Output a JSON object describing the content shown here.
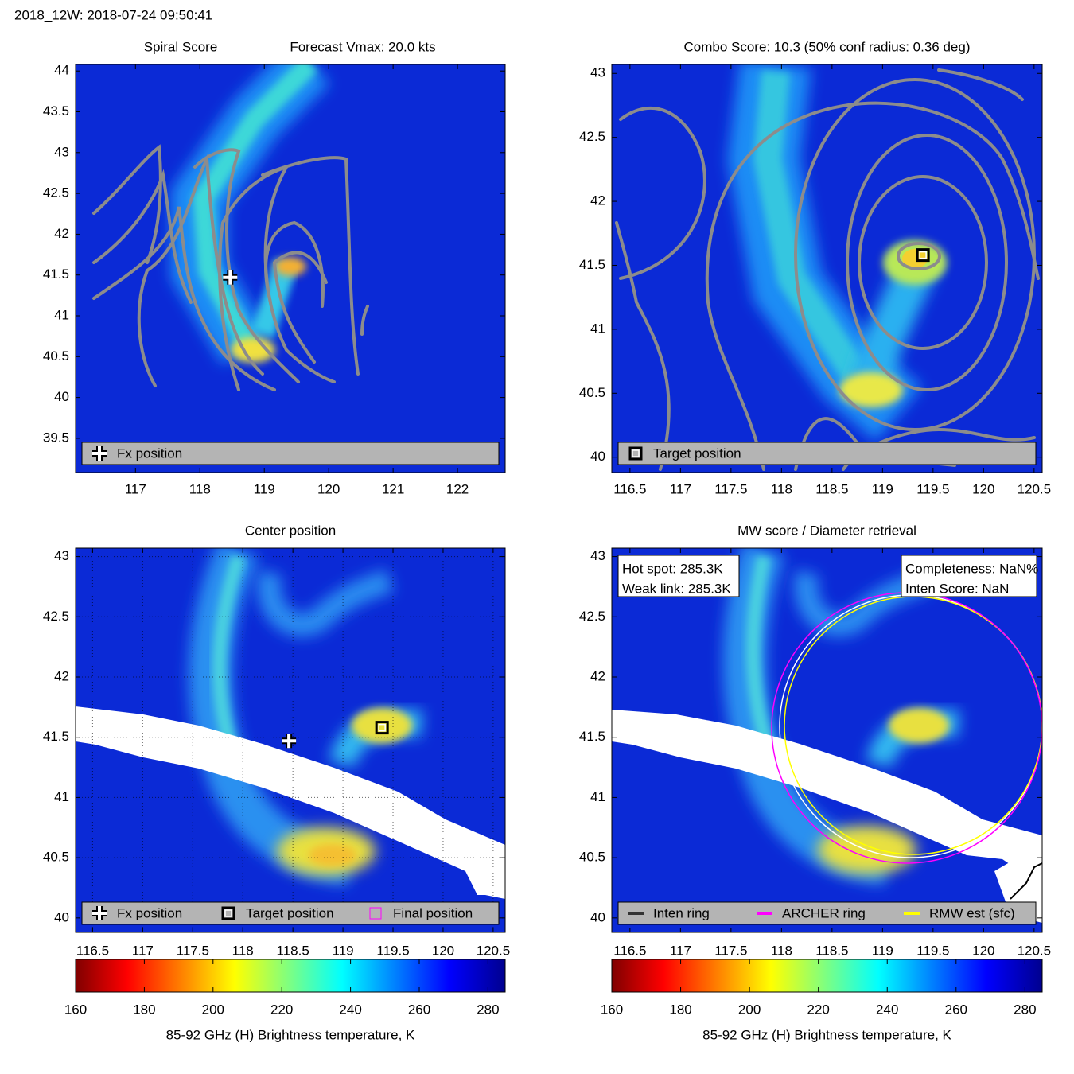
{
  "title": "2018_12W: 2018-07-24 09:50:41",
  "chart_data": [
    {
      "type": "heatmap",
      "title": "Spiral Score",
      "subtitle": "Forecast Vmax: 20.0 kts",
      "xlim": [
        116.07,
        122.74
      ],
      "ylim": [
        39.08,
        44.08
      ],
      "xticks": [
        117,
        118,
        119,
        120,
        121,
        122
      ],
      "yticks": [
        39.5,
        40,
        40.5,
        41,
        41.5,
        42,
        42.5,
        43,
        43.5,
        44
      ],
      "markers": [
        {
          "name": "Fx position",
          "symbol": "plus",
          "x": 118.47,
          "y": 41.47
        }
      ]
    },
    {
      "type": "heatmap",
      "title": "Combo Score: 10.3  (50% conf radius: 0.36 deg)",
      "xlim": [
        116.32,
        120.58
      ],
      "ylim": [
        39.88,
        43.07
      ],
      "xticks": [
        116.5,
        117,
        117.5,
        118,
        118.5,
        119,
        119.5,
        120,
        120.5
      ],
      "yticks": [
        40,
        40.5,
        41,
        41.5,
        42,
        42.5,
        43
      ],
      "markers": [
        {
          "name": "Target position",
          "symbol": "square",
          "x": 119.4,
          "y": 41.58
        }
      ]
    },
    {
      "type": "heatmap",
      "title": "Center position",
      "grid": true,
      "xlim": [
        116.33,
        120.62
      ],
      "ylim": [
        39.88,
        43.07
      ],
      "xticks": [
        116.5,
        117,
        117.5,
        118,
        118.5,
        119,
        119.5,
        120,
        120.5
      ],
      "yticks": [
        40,
        40.5,
        41,
        41.5,
        42,
        42.5,
        43
      ],
      "markers": [
        {
          "name": "Fx position",
          "symbol": "plus",
          "x": 118.46,
          "y": 41.47
        },
        {
          "name": "Target position",
          "symbol": "square",
          "x": 119.39,
          "y": 41.58
        },
        {
          "name": "Final position",
          "symbol": "small-square",
          "color": "#ff00ff"
        }
      ],
      "colorbar": {
        "label": "85-92 GHz (H) Brightness temperature, K",
        "lim": [
          160,
          285
        ],
        "ticks": [
          160,
          180,
          200,
          220,
          240,
          260,
          280
        ]
      }
    },
    {
      "type": "heatmap",
      "title": "MW score / Diameter retrieval",
      "xlim": [
        116.32,
        120.58
      ],
      "ylim": [
        39.88,
        43.07
      ],
      "xticks": [
        116.5,
        117,
        117.5,
        118,
        118.5,
        119,
        119.5,
        120,
        120.5
      ],
      "yticks": [
        40,
        40.5,
        41,
        41.5,
        42,
        42.5,
        43
      ],
      "series": [
        {
          "name": "Inten ring",
          "color": "#333333"
        },
        {
          "name": "ARCHER ring",
          "color": "#ff00ff"
        },
        {
          "name": "RMW est (sfc)",
          "color": "#ffff00"
        }
      ],
      "annotations": [
        {
          "lines": [
            "Hot spot: 285.3K",
            "Weak link: 285.3K"
          ]
        },
        {
          "lines": [
            "Completeness: NaN%",
            "Inten Score: NaN"
          ]
        }
      ],
      "colorbar": {
        "label": "85-92 GHz (H) Brightness temperature, K",
        "lim": [
          160,
          285
        ],
        "ticks": [
          160,
          180,
          200,
          220,
          240,
          260,
          280
        ]
      }
    }
  ]
}
